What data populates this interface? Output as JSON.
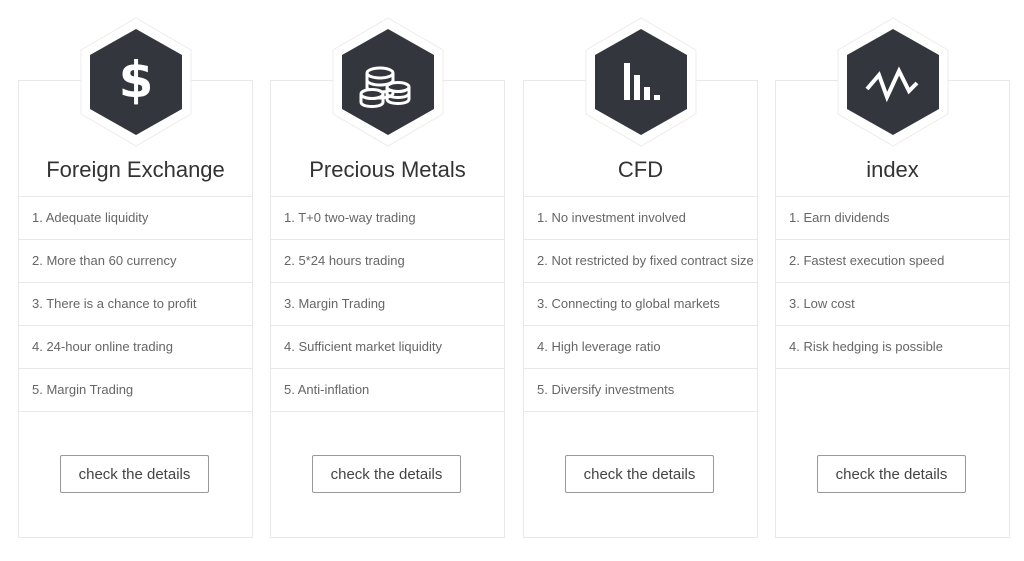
{
  "accent": "#33363d",
  "cards": [
    {
      "icon": "dollar-icon",
      "title": "Foreign Exchange",
      "items": [
        "1. Adequate liquidity",
        "2. More than 60 currency",
        "3. There is a chance to profit",
        "4. 24-hour online trading",
        "5. Margin Trading"
      ],
      "button": "check the details"
    },
    {
      "icon": "coins-icon",
      "title": "Precious Metals",
      "items": [
        "1. T+0 two-way trading",
        "2. 5*24 hours trading",
        "3. Margin Trading",
        "4. Sufficient market liquidity",
        "5. Anti-inflation"
      ],
      "button": "check the details"
    },
    {
      "icon": "bar-chart-icon",
      "title": "CFD",
      "items": [
        "1. No investment involved",
        "2. Not restricted by fixed contract size",
        "3. Connecting to global markets",
        "4. High leverage ratio",
        "5. Diversify investments"
      ],
      "button": "check the details"
    },
    {
      "icon": "pulse-line-icon",
      "title": "index",
      "items": [
        "1. Earn dividends",
        "2. Fastest execution speed",
        "3. Low cost",
        "4. Risk hedging is possible"
      ],
      "button": "check the details"
    }
  ]
}
